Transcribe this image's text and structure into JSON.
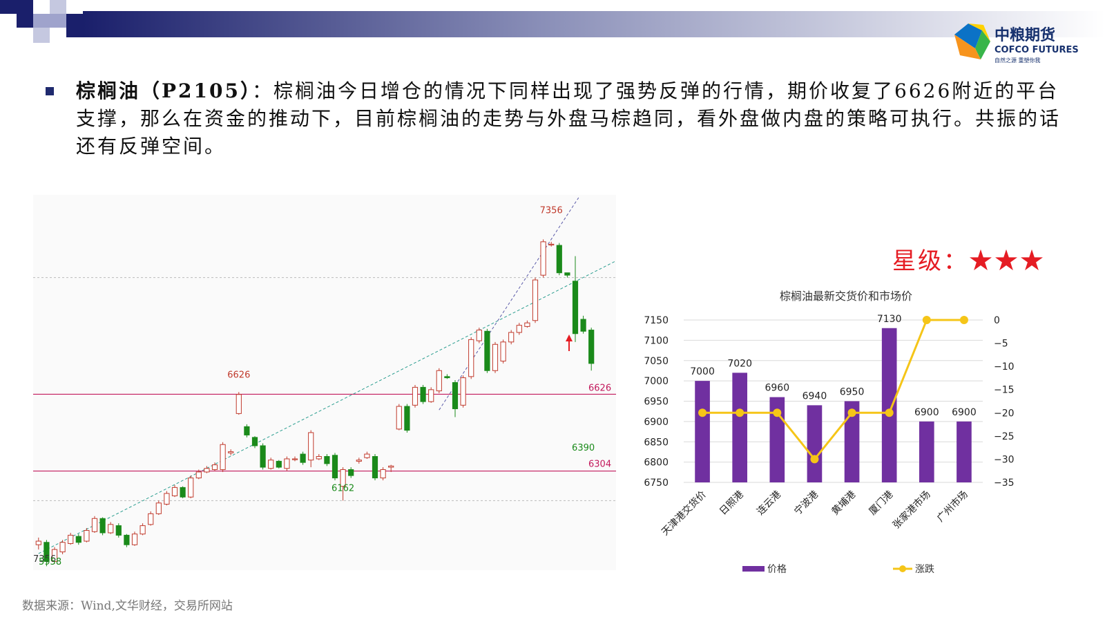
{
  "brand": {
    "name_cn": "中粮期货",
    "name_en": "COFCO FUTURES",
    "slogan": "自然之源 重塑你我"
  },
  "bullet": {
    "title": "棕榈油（P2105）",
    "separator": "：",
    "body": "棕榈油今日增仓的情况下同样出现了强势反弹的行情，期价收复了6626附近的平台支撑，那么在资金的推动下，目前棕榈油的走势与外盘马棕趋同，看外盘做内盘的策略可执行。共振的话还有反弹空间。"
  },
  "rating": {
    "label": "星级：",
    "stars": "★★★"
  },
  "source": "数据来源：Wind,文华财经，交易所网站",
  "colors": {
    "up": "#c0392b",
    "down": "#1a8a1a",
    "level_line": "#c2185b",
    "trend_line": "#2a9d8f",
    "bar": "#7030a0",
    "line": "#f5c518"
  },
  "chart_data": [
    {
      "type": "candlestick",
      "ylim": [
        5900,
        7450
      ],
      "x_count": 70,
      "candles": [
        [
          0,
          5995,
          6010,
          5975,
          6025
        ],
        [
          1,
          6005,
          5925,
          5905,
          6015
        ],
        [
          2,
          5925,
          5975,
          5915,
          5985
        ],
        [
          3,
          5965,
          6005,
          5955,
          6015
        ],
        [
          4,
          6000,
          6035,
          5995,
          6045
        ],
        [
          5,
          6030,
          6005,
          5995,
          6040
        ],
        [
          6,
          6010,
          6055,
          6005,
          6065
        ],
        [
          7,
          6050,
          6105,
          6045,
          6115
        ],
        [
          8,
          6105,
          6045,
          6035,
          6110
        ],
        [
          9,
          6045,
          6080,
          6040,
          6090
        ],
        [
          10,
          6075,
          6035,
          6025,
          6085
        ],
        [
          11,
          6035,
          5995,
          5985,
          6040
        ],
        [
          12,
          5995,
          6040,
          5990,
          6050
        ],
        [
          13,
          6040,
          6075,
          6035,
          6085
        ],
        [
          14,
          6080,
          6125,
          6075,
          6135
        ],
        [
          15,
          6125,
          6170,
          6120,
          6180
        ],
        [
          16,
          6165,
          6210,
          6160,
          6220
        ],
        [
          17,
          6200,
          6235,
          6195,
          6245
        ],
        [
          18,
          6235,
          6195,
          6190,
          6240
        ],
        [
          19,
          6195,
          6275,
          6190,
          6285
        ],
        [
          20,
          6275,
          6300,
          6270,
          6310
        ],
        [
          21,
          6300,
          6315,
          6295,
          6325
        ],
        [
          22,
          6310,
          6330,
          6305,
          6340
        ],
        [
          23,
          6310,
          6415,
          6300,
          6425
        ],
        [
          24,
          6380,
          6385,
          6370,
          6395
        ],
        [
          25,
          6545,
          6625,
          6540,
          6635
        ],
        [
          26,
          6490,
          6455,
          6445,
          6500
        ],
        [
          27,
          6445,
          6410,
          6400,
          6450
        ],
        [
          28,
          6410,
          6320,
          6310,
          6420
        ],
        [
          29,
          6315,
          6350,
          6310,
          6360
        ],
        [
          30,
          6345,
          6320,
          6315,
          6350
        ],
        [
          31,
          6315,
          6355,
          6305,
          6365
        ],
        [
          32,
          6355,
          6355,
          6345,
          6365
        ],
        [
          33,
          6375,
          6340,
          6330,
          6385
        ],
        [
          34,
          6350,
          6465,
          6320,
          6475
        ],
        [
          35,
          6355,
          6365,
          6350,
          6375
        ],
        [
          36,
          6365,
          6335,
          6325,
          6375
        ],
        [
          37,
          6370,
          6275,
          6265,
          6380
        ],
        [
          38,
          6240,
          6310,
          6180,
          6320
        ],
        [
          39,
          6310,
          6285,
          6275,
          6320
        ],
        [
          40,
          6345,
          6350,
          6335,
          6360
        ],
        [
          41,
          6360,
          6375,
          6355,
          6385
        ],
        [
          42,
          6365,
          6275,
          6265,
          6375
        ],
        [
          43,
          6275,
          6310,
          6265,
          6320
        ],
        [
          44,
          6320,
          6325,
          6300,
          6330
        ],
        [
          45,
          6480,
          6575,
          6475,
          6585
        ],
        [
          46,
          6575,
          6475,
          6465,
          6585
        ],
        [
          47,
          6580,
          6655,
          6570,
          6665
        ],
        [
          48,
          6655,
          6595,
          6585,
          6665
        ],
        [
          49,
          6595,
          6645,
          6590,
          6655
        ],
        [
          50,
          6640,
          6725,
          6630,
          6735
        ],
        [
          51,
          6700,
          6695,
          6690,
          6710
        ],
        [
          52,
          6675,
          6565,
          6530,
          6685
        ],
        [
          53,
          6580,
          6695,
          6570,
          6705
        ],
        [
          54,
          6700,
          6855,
          6690,
          6865
        ],
        [
          55,
          6850,
          6895,
          6840,
          6905
        ],
        [
          56,
          6890,
          6725,
          6715,
          6900
        ],
        [
          57,
          6725,
          6835,
          6715,
          6845
        ],
        [
          58,
          6765,
          6845,
          6755,
          6855
        ],
        [
          59,
          6845,
          6885,
          6835,
          6895
        ],
        [
          60,
          6885,
          6915,
          6875,
          6925
        ],
        [
          61,
          6910,
          6925,
          6905,
          6935
        ],
        [
          62,
          6935,
          7105,
          6925,
          7115
        ],
        [
          63,
          7125,
          7265,
          7115,
          7275
        ],
        [
          64,
          7255,
          7255,
          7245,
          7265
        ],
        [
          65,
          7250,
          7135,
          7125,
          7260
        ],
        [
          66,
          7135,
          7125,
          7115,
          7135
        ],
        [
          67,
          7100,
          6880,
          6845,
          7205
        ],
        [
          68,
          6940,
          6890,
          6880,
          6955
        ],
        [
          69,
          6895,
          6755,
          6725,
          6905
        ]
      ]
    },
    {
      "type": "bar+line",
      "title": "棕榈油最新交货价和市场价",
      "categories": [
        "天津港交货价",
        "日照港",
        "连云港",
        "宁波港",
        "黄埔港",
        "厦门港",
        "张家港市场",
        "广州市场"
      ],
      "ylim": [
        6750,
        7150
      ],
      "y2lim": [
        -35,
        0
      ],
      "y_ticks": [
        6750,
        6800,
        6850,
        6900,
        6950,
        7000,
        7050,
        7100,
        7150
      ],
      "y2_ticks": [
        0,
        -5,
        -10,
        -15,
        -20,
        -25,
        -30,
        -35
      ],
      "series": [
        {
          "name": "价格",
          "type": "bar",
          "axis": "left",
          "values": [
            7000,
            7020,
            6960,
            6940,
            6950,
            7130,
            6900,
            6900
          ]
        },
        {
          "name": "涨跌",
          "type": "line",
          "axis": "right",
          "values": [
            -20,
            -20,
            -20,
            -30,
            -20,
            -20,
            0,
            0
          ]
        }
      ],
      "legend_position": "bottom"
    }
  ],
  "kline_annotations": {
    "high_label": "7356",
    "level_upper_label": "6626",
    "level_upper_right": "6626",
    "level_lower_right": "6304",
    "low_mid_label": "6162",
    "low_right_label": "6390",
    "bottom_left_label_a": "7356",
    "bottom_left_label_b": "5958"
  }
}
